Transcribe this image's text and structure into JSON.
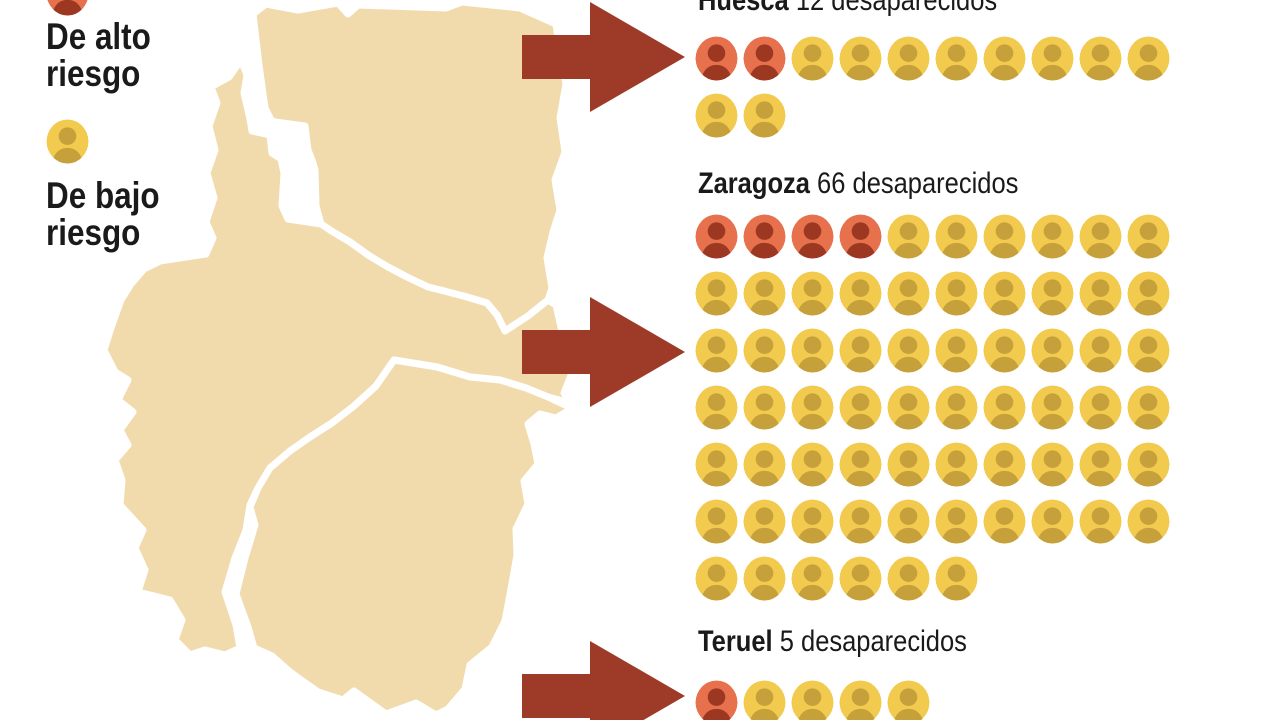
{
  "colors": {
    "map_fill": "#F1DBAD",
    "border_white": "#FFFFFF",
    "arrow": "#9E3B28",
    "high_risk_bg": "#E8714D",
    "high_risk_fg": "#9C3822",
    "low_risk_bg": "#F2CA4E",
    "low_risk_fg": "#C6A03B",
    "text": "#1A1A1A"
  },
  "legend": {
    "high": {
      "line1": "De alto",
      "line2": "riesgo"
    },
    "low": {
      "line1": "De bajo",
      "line2": "riesgo"
    }
  },
  "provinces": [
    {
      "name": "Huesca",
      "count": "12",
      "suffix": "desaparecidos",
      "high": 2,
      "low": 10
    },
    {
      "name": "Zaragoza",
      "count": "66",
      "suffix": "desaparecidos",
      "high": 4,
      "low": 62
    },
    {
      "name": "Teruel",
      "count": "5",
      "suffix": "desaparecidos",
      "high": 1,
      "low": 4
    }
  ],
  "chart_data": {
    "type": "pictogram",
    "categories": [
      "Huesca",
      "Zaragoza",
      "Teruel"
    ],
    "series": [
      {
        "name": "De alto riesgo",
        "values": [
          2,
          4,
          1
        ]
      },
      {
        "name": "De bajo riesgo",
        "values": [
          10,
          62,
          4
        ]
      }
    ],
    "totals": [
      12,
      66,
      5
    ],
    "unit": "desaparecidos",
    "icons_per_row": 10,
    "legend_position": "top-left"
  }
}
